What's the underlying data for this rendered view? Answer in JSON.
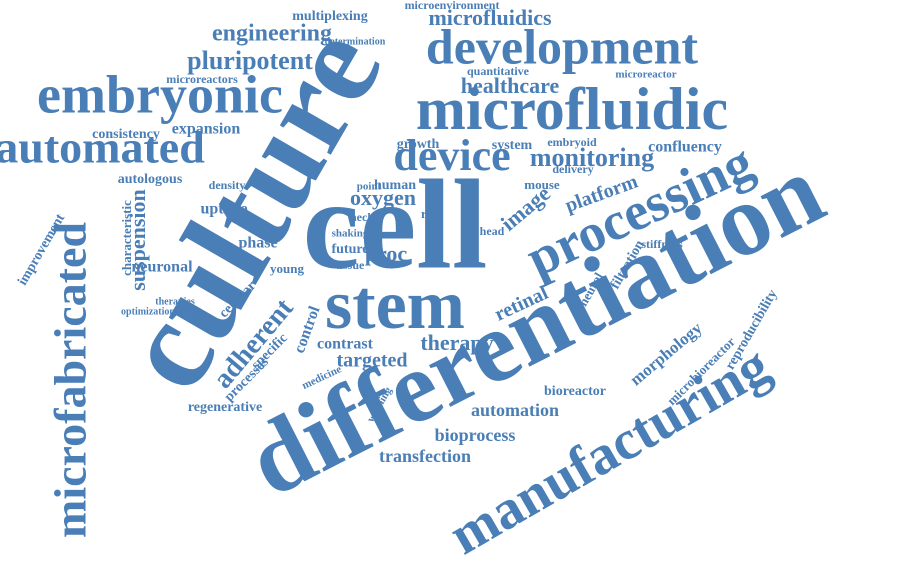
{
  "words": [
    "differentiation",
    "culture",
    "cell",
    "stem",
    "manufacturing",
    "microfabricated",
    "processing",
    "microfluidic",
    "development",
    "embryonic",
    "automated",
    "device",
    "monitoring",
    "engineering",
    "pluripotent",
    "healthcare",
    "microfluidics",
    "microenvironment",
    "multiplexing",
    "suspension",
    "improvement",
    "characteristic",
    "oxygen",
    "image",
    "platform",
    "retinal",
    "adherent",
    "therapy",
    "targeted",
    "contrast",
    "automation",
    "bioprocess",
    "transfection",
    "regenerative",
    "bioreactor",
    "morphology",
    "microbioreactor",
    "reproducibility",
    "filtration",
    "stiffness",
    "processes",
    "neuronal",
    "therapies",
    "optimization",
    "autologous",
    "consistency",
    "expansion",
    "growth",
    "system",
    "confluency",
    "embryoid",
    "mouse",
    "delivery",
    "proc",
    "future",
    "tissue",
    "human",
    "uptake",
    "phase",
    "cellular",
    "control",
    "young",
    "medicine",
    "washing",
    "microreactors",
    "microreactor",
    "quantitative",
    "determination",
    "specific",
    "head",
    "neck",
    "rate",
    "density",
    "point",
    "shaking",
    "neural"
  ]
}
